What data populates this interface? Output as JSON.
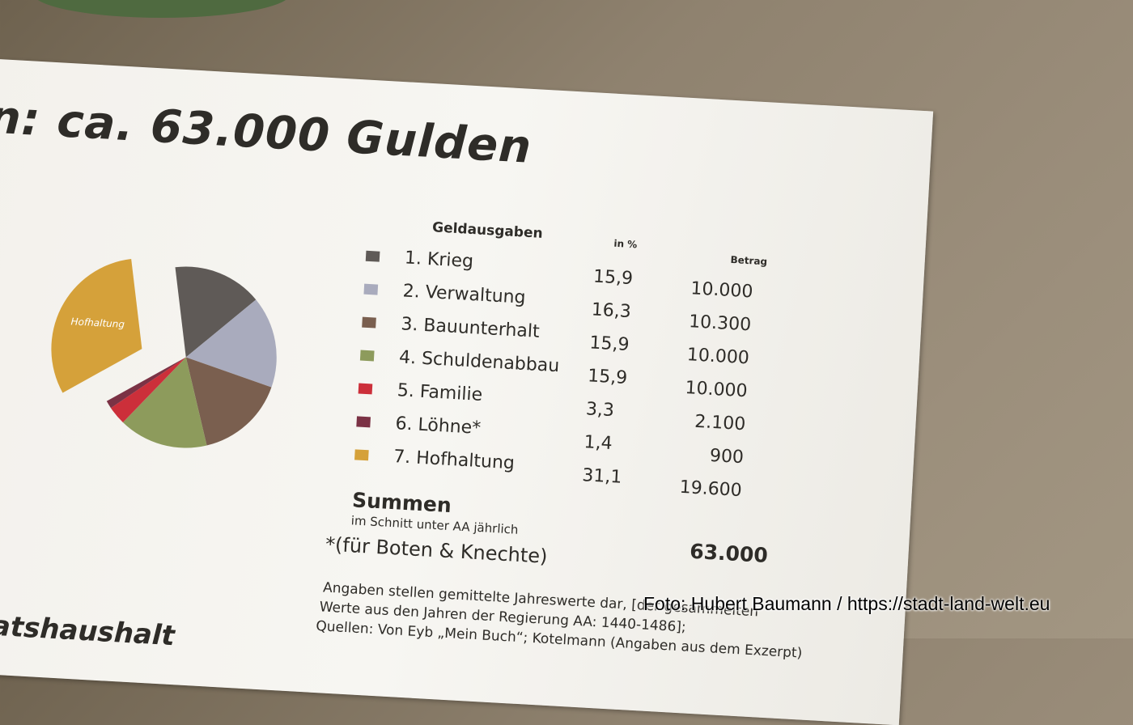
{
  "title": "n: ca. 63.000 Gulden",
  "table": {
    "header_label": "Geldausgaben",
    "header_pct": "in %",
    "header_amount": "Betrag",
    "rows": [
      {
        "label": "1. Krieg",
        "pct": "15,9",
        "amount": "10.000",
        "color": "#5f5a57"
      },
      {
        "label": "2. Verwaltung",
        "pct": "16,3",
        "amount": "10.300",
        "color": "#a9abbd"
      },
      {
        "label": "3. Bauunterhalt",
        "pct": "15,9",
        "amount": "10.000",
        "color": "#7a5f4f"
      },
      {
        "label": "4. Schuldenabbau",
        "pct": "15,9",
        "amount": "10.000",
        "color": "#8d9b5c"
      },
      {
        "label": "5. Familie",
        "pct": "3,3",
        "amount": "2.100",
        "color": "#cc2f3a"
      },
      {
        "label": "6. Löhne*",
        "pct": "1,4",
        "amount": "900",
        "color": "#7b3245"
      },
      {
        "label": "7. Hofhaltung",
        "pct": "31,1",
        "amount": "19.600",
        "color": "#d5a13a"
      }
    ],
    "sum_label": "Summen",
    "sum_sub": "im Schnitt unter AA jährlich",
    "sum_amount": "63.000",
    "footnote": "*(für Boten & Knechte)"
  },
  "notes": [
    "Angaben stellen gemittelte Jahreswerte dar, [der gesammelten",
    "Werte aus den Jahren der Regierung AA: 1440-1486];",
    "Quellen: Von Eyb „Mein Buch“; Kotelmann (Angaben aus dem Exzerpt)"
  ],
  "bottom_fragment": "taatshaushalt",
  "credit": "Foto:  Hubert Baumann / https://stadt-land-welt.eu",
  "chart_data": {
    "type": "pie",
    "categories": [
      "Krieg",
      "Verwaltung",
      "Bauunterhalt",
      "Schuldenabbau",
      "Familie",
      "Löhne",
      "Hofhaltung"
    ],
    "values": [
      15.9,
      16.3,
      15.9,
      15.9,
      3.3,
      1.4,
      31.1
    ],
    "colors": [
      "#5f5a57",
      "#a9abbd",
      "#7a5f4f",
      "#8d9b5c",
      "#cc2f3a",
      "#7b3245",
      "#d5a13a"
    ],
    "slice_label": "Hofhaltung",
    "exploded": "Hofhaltung"
  }
}
